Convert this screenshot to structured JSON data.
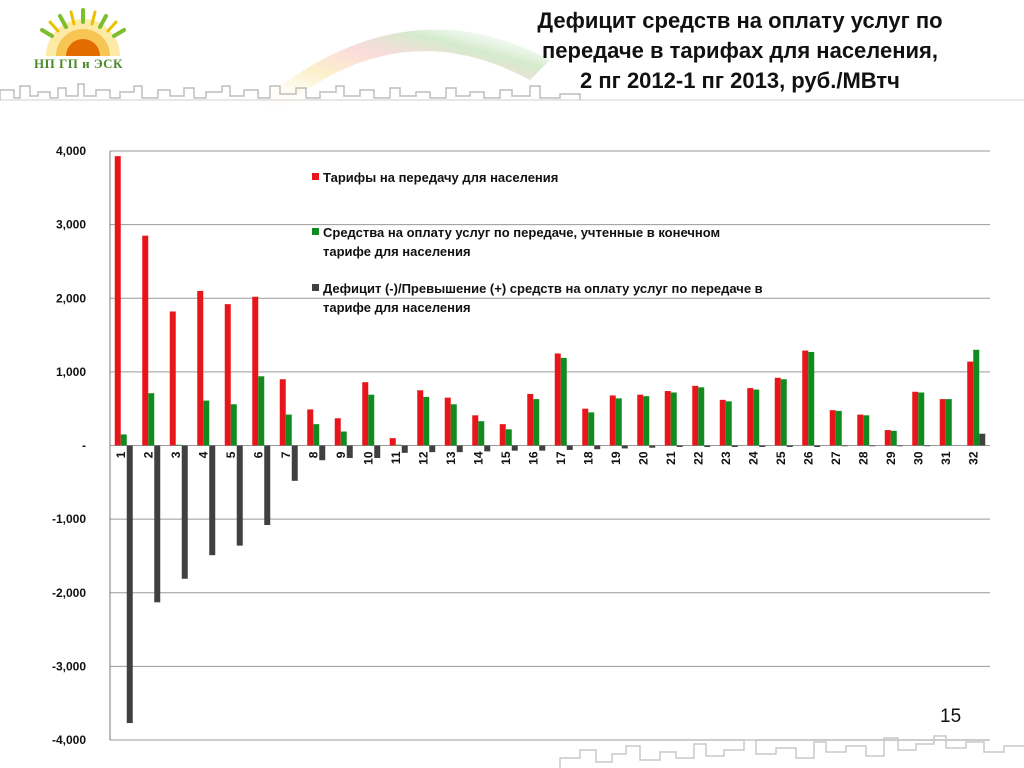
{
  "header": {
    "logo_text": "НП ГП и ЭСК",
    "title_lines": [
      "Дефицит средств на оплату услуг по",
      "передаче в тарифах для населения,",
      "2 пг 2012-1 пг 2013, руб./МВтч"
    ]
  },
  "page_number": "15",
  "colors": {
    "tariff": "#e8161b",
    "funds": "#118a1e",
    "deficit": "#404040"
  },
  "chart_data": {
    "type": "bar",
    "title": "Дефицит средств на оплату услуг по передаче в тарифах для населения, 2 пг 2012-1 пг 2013, руб./МВтч",
    "xlabel": "",
    "ylabel": "",
    "ylim": [
      -4000,
      4000
    ],
    "yticks": [
      4000,
      3000,
      2000,
      1000,
      0,
      -1000,
      -2000,
      -3000,
      -4000
    ],
    "ytick_labels": [
      "4,000",
      "3,000",
      "2,000",
      "1,000",
      "-",
      "-1,000",
      "-2,000",
      "-3,000",
      "-4,000"
    ],
    "grid": true,
    "legend_position": "top-center",
    "categories": [
      "1",
      "2",
      "3",
      "4",
      "5",
      "6",
      "7",
      "8",
      "9",
      "10",
      "11",
      "12",
      "13",
      "14",
      "15",
      "16",
      "17",
      "18",
      "19",
      "20",
      "21",
      "22",
      "23",
      "24",
      "25",
      "26",
      "27",
      "28",
      "29",
      "30",
      "31",
      "32"
    ],
    "series": [
      {
        "name": "Тарифы на передачу для населения",
        "color": "#e8161b",
        "values": [
          3930,
          2850,
          1820,
          2100,
          1920,
          2020,
          900,
          490,
          370,
          860,
          100,
          750,
          650,
          410,
          290,
          700,
          1250,
          500,
          680,
          690,
          740,
          810,
          620,
          780,
          920,
          1290,
          480,
          420,
          210,
          730,
          630,
          1140
        ]
      },
      {
        "name": "Средства на оплату услуг по передаче, учтенные в конечном тарифе для населения",
        "color": "#118a1e",
        "values": [
          150,
          710,
          10,
          610,
          560,
          940,
          420,
          290,
          190,
          690,
          10,
          660,
          560,
          330,
          220,
          630,
          1190,
          450,
          640,
          670,
          720,
          790,
          600,
          760,
          900,
          1270,
          470,
          410,
          200,
          720,
          630,
          1300
        ]
      },
      {
        "name": "Дефицит (-)/Превышение (+) средств на оплату услуг по передаче в тарифе для населения",
        "color": "#404040",
        "values": [
          -3770,
          -2130,
          -1810,
          -1490,
          -1360,
          -1080,
          -480,
          -200,
          -170,
          -170,
          -100,
          -90,
          -90,
          -80,
          -70,
          -70,
          -60,
          -50,
          -40,
          -30,
          -20,
          -20,
          -20,
          -20,
          -20,
          -20,
          -10,
          -10,
          -10,
          -10,
          0,
          160
        ]
      }
    ]
  }
}
